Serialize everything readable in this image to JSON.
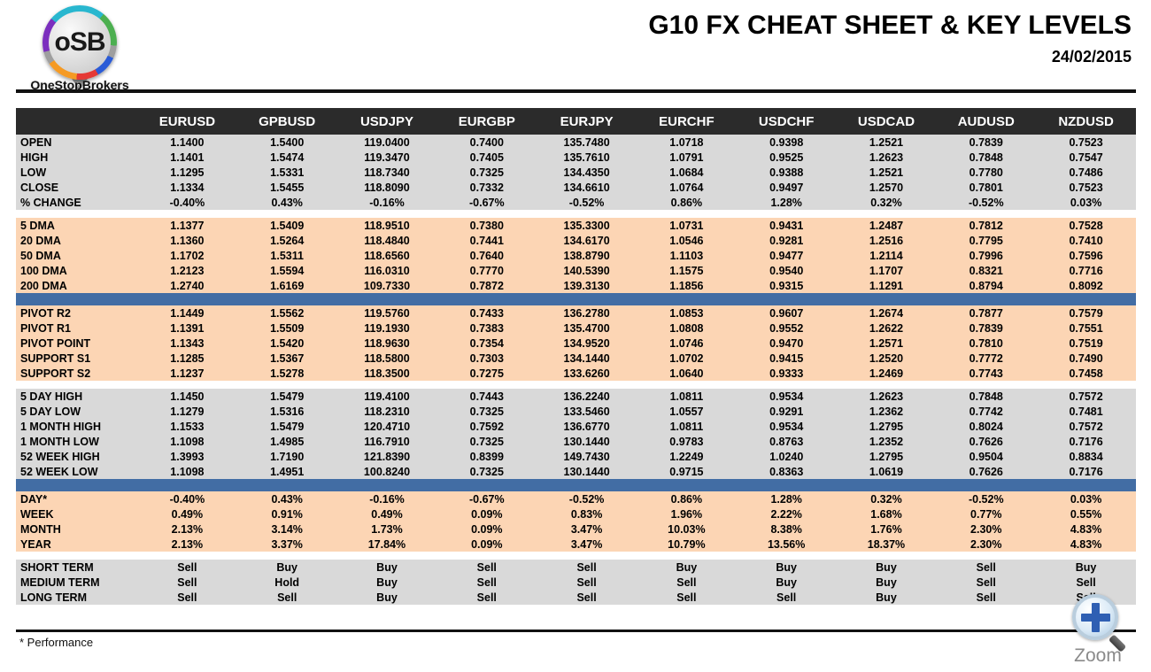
{
  "logo": {
    "monogram": "oSB",
    "brand": "OneStopBrokers"
  },
  "header": {
    "title": "G10 FX CHEAT SHEET & KEY LEVELS",
    "date": "24/02/2015"
  },
  "columns": [
    "EURUSD",
    "GPBUSD",
    "USDJPY",
    "EURGBP",
    "EURJPY",
    "EURCHF",
    "USDCHF",
    "USDCAD",
    "AUDUSD",
    "NZDUSD"
  ],
  "sections": [
    {
      "name": "ohlc",
      "bg": "gray",
      "separator_after": "gap",
      "rows": [
        {
          "label": "OPEN",
          "values": [
            "1.1400",
            "1.5400",
            "119.0400",
            "0.7400",
            "135.7480",
            "1.0718",
            "0.9398",
            "1.2521",
            "0.7839",
            "0.7523"
          ]
        },
        {
          "label": "HIGH",
          "values": [
            "1.1401",
            "1.5474",
            "119.3470",
            "0.7405",
            "135.7610",
            "1.0791",
            "0.9525",
            "1.2623",
            "0.7848",
            "0.7547"
          ]
        },
        {
          "label": "LOW",
          "values": [
            "1.1295",
            "1.5331",
            "118.7340",
            "0.7325",
            "134.4350",
            "1.0684",
            "0.9388",
            "1.2521",
            "0.7780",
            "0.7486"
          ]
        },
        {
          "label": "CLOSE",
          "values": [
            "1.1334",
            "1.5455",
            "118.8090",
            "0.7332",
            "134.6610",
            "1.0764",
            "0.9497",
            "1.2570",
            "0.7801",
            "0.7523"
          ]
        },
        {
          "label": "% CHANGE",
          "values": [
            "-0.40%",
            "0.43%",
            "-0.16%",
            "-0.67%",
            "-0.52%",
            "0.86%",
            "1.28%",
            "0.32%",
            "-0.52%",
            "0.03%"
          ]
        }
      ]
    },
    {
      "name": "dma",
      "bg": "peach",
      "separator_after": "divider",
      "rows": [
        {
          "label": "5 DMA",
          "values": [
            "1.1377",
            "1.5409",
            "118.9510",
            "0.7380",
            "135.3300",
            "1.0731",
            "0.9431",
            "1.2487",
            "0.7812",
            "0.7528"
          ]
        },
        {
          "label": "20 DMA",
          "values": [
            "1.1360",
            "1.5264",
            "118.4840",
            "0.7441",
            "134.6170",
            "1.0546",
            "0.9281",
            "1.2516",
            "0.7795",
            "0.7410"
          ]
        },
        {
          "label": "50 DMA",
          "values": [
            "1.1702",
            "1.5311",
            "118.6560",
            "0.7640",
            "138.8790",
            "1.1103",
            "0.9477",
            "1.2114",
            "0.7996",
            "0.7596"
          ]
        },
        {
          "label": "100 DMA",
          "values": [
            "1.2123",
            "1.5594",
            "116.0310",
            "0.7770",
            "140.5390",
            "1.1575",
            "0.9540",
            "1.1707",
            "0.8321",
            "0.7716"
          ]
        },
        {
          "label": "200 DMA",
          "values": [
            "1.2740",
            "1.6169",
            "109.7330",
            "0.7872",
            "139.3130",
            "1.1856",
            "0.9315",
            "1.1291",
            "0.8794",
            "0.8092"
          ]
        }
      ]
    },
    {
      "name": "pivots",
      "bg": "peach",
      "separator_after": "gap",
      "rows": [
        {
          "label": "PIVOT R2",
          "label_color": "green",
          "values": [
            "1.1449",
            "1.5562",
            "119.5760",
            "0.7433",
            "136.2780",
            "1.0853",
            "0.9607",
            "1.2674",
            "0.7877",
            "0.7579"
          ]
        },
        {
          "label": "PIVOT R1",
          "label_color": "green",
          "values": [
            "1.1391",
            "1.5509",
            "119.1930",
            "0.7383",
            "135.4700",
            "1.0808",
            "0.9552",
            "1.2622",
            "0.7839",
            "0.7551"
          ]
        },
        {
          "label": "PIVOT POINT",
          "label_color": "navy",
          "values": [
            "1.1343",
            "1.5420",
            "118.9630",
            "0.7354",
            "134.9520",
            "1.0746",
            "0.9470",
            "1.2571",
            "0.7810",
            "0.7519"
          ]
        },
        {
          "label": "SUPPORT S1",
          "label_color": "red",
          "values": [
            "1.1285",
            "1.5367",
            "118.5800",
            "0.7303",
            "134.1440",
            "1.0702",
            "0.9415",
            "1.2520",
            "0.7772",
            "0.7490"
          ]
        },
        {
          "label": "SUPPORT S2",
          "label_color": "red",
          "values": [
            "1.1237",
            "1.5278",
            "118.3500",
            "0.7275",
            "133.6260",
            "1.0640",
            "0.9333",
            "1.2469",
            "0.7743",
            "0.7458"
          ]
        }
      ]
    },
    {
      "name": "ranges",
      "bg": "gray",
      "separator_after": "divider",
      "rows": [
        {
          "label": "5 DAY HIGH",
          "values": [
            "1.1450",
            "1.5479",
            "119.4100",
            "0.7443",
            "136.2240",
            "1.0811",
            "0.9534",
            "1.2623",
            "0.7848",
            "0.7572"
          ]
        },
        {
          "label": "5 DAY LOW",
          "values": [
            "1.1279",
            "1.5316",
            "118.2310",
            "0.7325",
            "133.5460",
            "1.0557",
            "0.9291",
            "1.2362",
            "0.7742",
            "0.7481"
          ]
        },
        {
          "label": "1 MONTH HIGH",
          "values": [
            "1.1533",
            "1.5479",
            "120.4710",
            "0.7592",
            "136.6770",
            "1.0811",
            "0.9534",
            "1.2795",
            "0.8024",
            "0.7572"
          ]
        },
        {
          "label": "1 MONTH LOW",
          "values": [
            "1.1098",
            "1.4985",
            "116.7910",
            "0.7325",
            "130.1440",
            "0.9783",
            "0.8763",
            "1.2352",
            "0.7626",
            "0.7176"
          ]
        },
        {
          "label": "52 WEEK HIGH",
          "values": [
            "1.3993",
            "1.7190",
            "121.8390",
            "0.8399",
            "149.7430",
            "1.2249",
            "1.0240",
            "1.2795",
            "0.9504",
            "0.8834"
          ]
        },
        {
          "label": "52 WEEK LOW",
          "values": [
            "1.1098",
            "1.4951",
            "100.8240",
            "0.7325",
            "130.1440",
            "0.9715",
            "0.8363",
            "1.0619",
            "0.7626",
            "0.7176"
          ]
        }
      ]
    },
    {
      "name": "performance",
      "bg": "peach",
      "separator_after": "gap",
      "rows": [
        {
          "label": "DAY*",
          "values": [
            "-0.40%",
            "0.43%",
            "-0.16%",
            "-0.67%",
            "-0.52%",
            "0.86%",
            "1.28%",
            "0.32%",
            "-0.52%",
            "0.03%"
          ]
        },
        {
          "label": "WEEK",
          "values": [
            "0.49%",
            "0.91%",
            "0.49%",
            "0.09%",
            "0.83%",
            "1.96%",
            "2.22%",
            "1.68%",
            "0.77%",
            "0.55%"
          ]
        },
        {
          "label": "MONTH",
          "values": [
            "2.13%",
            "3.14%",
            "1.73%",
            "0.09%",
            "3.47%",
            "10.03%",
            "8.38%",
            "1.76%",
            "2.30%",
            "4.83%"
          ]
        },
        {
          "label": "YEAR",
          "values": [
            "2.13%",
            "3.37%",
            "17.84%",
            "0.09%",
            "3.47%",
            "10.79%",
            "13.56%",
            "18.37%",
            "2.30%",
            "4.83%"
          ]
        }
      ]
    },
    {
      "name": "signals",
      "bg": "gray",
      "colored_values": true,
      "separator_after": null,
      "rows": [
        {
          "label": "SHORT TERM",
          "values": [
            "Sell",
            "Buy",
            "Buy",
            "Sell",
            "Sell",
            "Buy",
            "Buy",
            "Buy",
            "Sell",
            "Buy"
          ]
        },
        {
          "label": "MEDIUM TERM",
          "values": [
            "Sell",
            "Hold",
            "Buy",
            "Sell",
            "Sell",
            "Sell",
            "Buy",
            "Buy",
            "Sell",
            "Sell"
          ]
        },
        {
          "label": "LONG TERM",
          "values": [
            "Sell",
            "Sell",
            "Buy",
            "Sell",
            "Sell",
            "Sell",
            "Sell",
            "Buy",
            "Sell",
            "Sell"
          ]
        }
      ]
    }
  ],
  "footer": {
    "note": "* Performance",
    "zoom_label": "Zoom"
  },
  "colors": {
    "header_bg": "#2b2b2b",
    "section_gray": "#d9d9d9",
    "section_peach": "#fcd5b4",
    "divider_blue": "#426da4",
    "buy_green": "#00a650",
    "sell_red": "#ee1111",
    "hold_navy": "#1f497d",
    "pivot_navy": "#17365d"
  }
}
